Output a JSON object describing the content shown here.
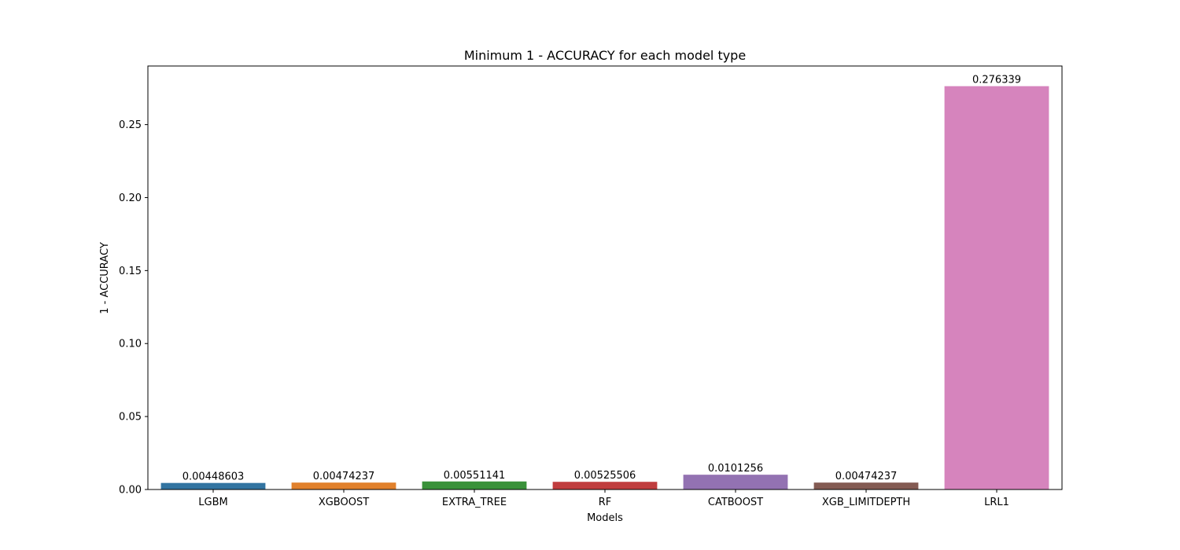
{
  "chart_data": {
    "type": "bar",
    "title": "Minimum 1 - ACCURACY for each model type",
    "xlabel": "Models",
    "ylabel": "1 - ACCURACY",
    "categories": [
      "LGBM",
      "XGBOOST",
      "EXTRA_TREE",
      "RF",
      "CATBOOST",
      "XGB_LIMITDEPTH",
      "LRL1"
    ],
    "values": [
      0.00448603,
      0.00474237,
      0.00551141,
      0.00525506,
      0.0101256,
      0.00474237,
      0.276339
    ],
    "value_labels": [
      "0.00448603",
      "0.00474237",
      "0.00551141",
      "0.00525506",
      "0.0101256",
      "0.00474237",
      "0.276339"
    ],
    "colors": [
      "#3274a1",
      "#e1812c",
      "#3a923a",
      "#c03d3e",
      "#9372b2",
      "#845b53",
      "#d684bd"
    ],
    "ylim": [
      0,
      0.29016
    ],
    "yticks": [
      0.0,
      0.05,
      0.1,
      0.15,
      0.2,
      0.25
    ],
    "ytick_labels": [
      "0.00",
      "0.05",
      "0.10",
      "0.15",
      "0.20",
      "0.25"
    ],
    "grid": false,
    "legend": "none"
  }
}
